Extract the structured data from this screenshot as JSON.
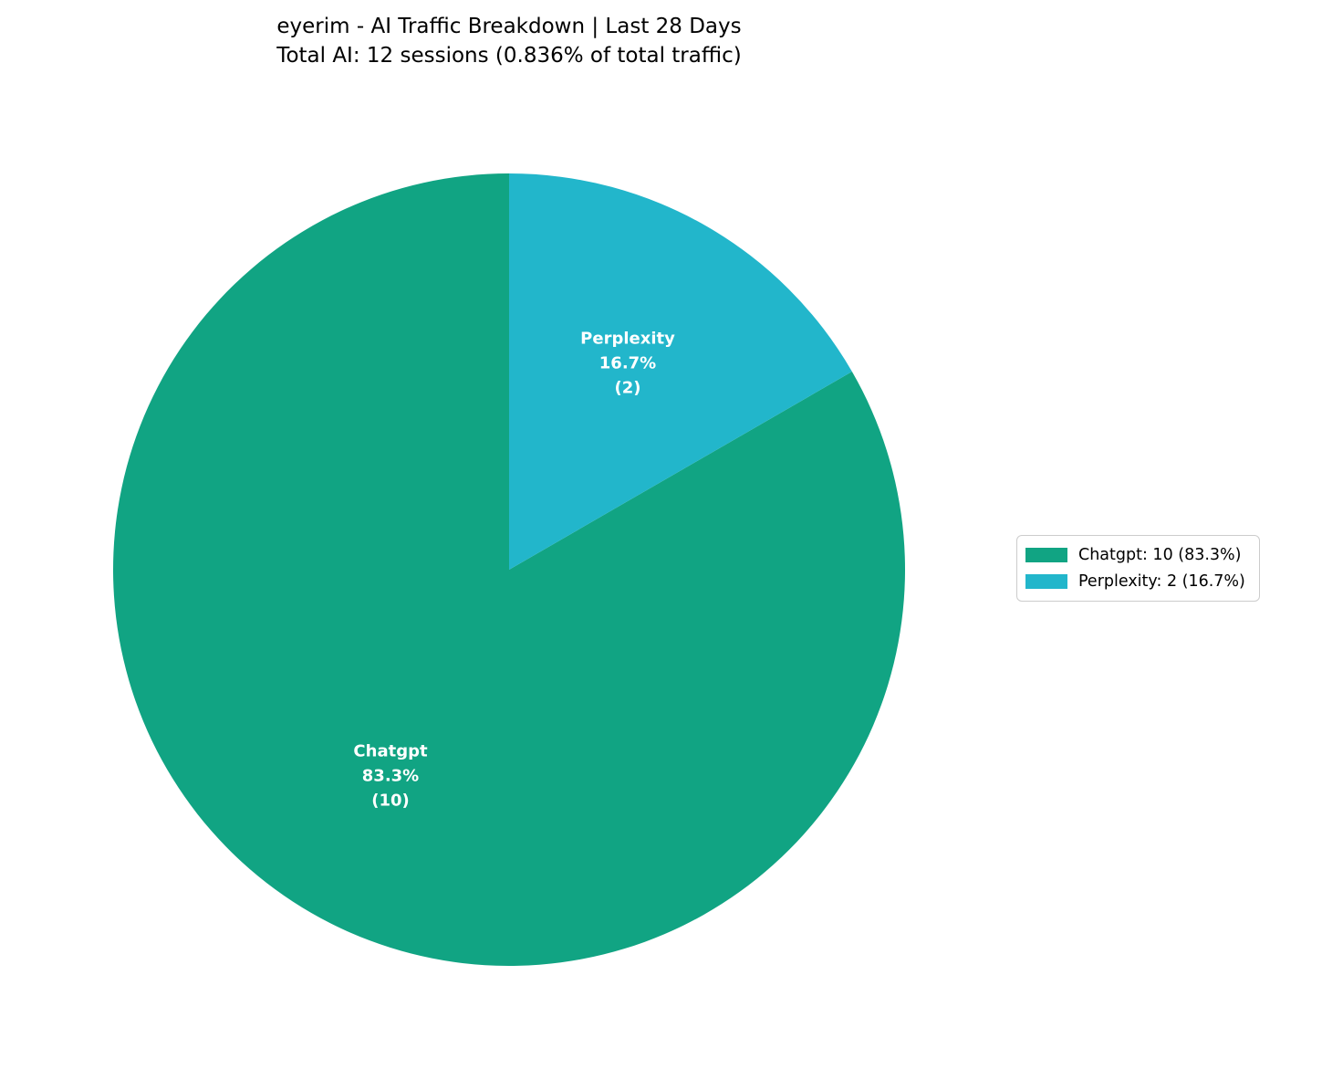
{
  "title": {
    "line1": "eyerim - AI Traffic Breakdown | Last 28 Days",
    "line2": "Total AI: 12 sessions (0.836% of total traffic)"
  },
  "chart_data": {
    "type": "pie",
    "title": "eyerim - AI Traffic Breakdown | Last 28 Days",
    "subtitle": "Total AI: 12 sessions (0.836% of total traffic)",
    "categories": [
      "Chatgpt",
      "Perplexity"
    ],
    "values": [
      10,
      2
    ],
    "percents": [
      83.3,
      16.7
    ],
    "total_sessions": 12,
    "total_share_of_traffic_pct": 0.836,
    "colors": [
      "#11A483",
      "#22B6CB"
    ],
    "start_angle": 90,
    "counterclock": true,
    "label_distance": 0.6,
    "legend_position": "center right",
    "slice_labels": [
      {
        "name": "Chatgpt",
        "pct": "83.3%",
        "count": "(10)"
      },
      {
        "name": "Perplexity",
        "pct": "16.7%",
        "count": "(2)"
      }
    ],
    "legend_entries": [
      "Chatgpt: 10 (83.3%)",
      "Perplexity: 2 (16.7%)"
    ]
  }
}
